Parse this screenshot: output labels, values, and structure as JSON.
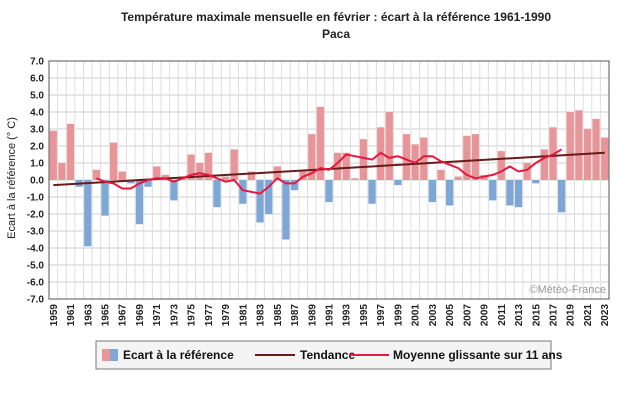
{
  "chart_data": {
    "type": "bar",
    "title": "Température maximale mensuelle en février : écart à la référence 1961-1990",
    "subtitle": "Paca",
    "ylabel": "Ecart à la référence (° C)",
    "xlabel": "",
    "ylim": [
      -7,
      7
    ],
    "yticks": [
      7,
      6,
      5,
      4,
      3,
      2,
      1,
      0,
      -1,
      -2,
      -3,
      -4,
      -5,
      -6,
      -7
    ],
    "ytick_labels": [
      "7.0",
      "6.0",
      "5.0",
      "4.0",
      "3.0",
      "2.0",
      "1.0",
      "0.0",
      "-1.0",
      "-2.0",
      "-3.0",
      "-4.0",
      "-5.0",
      "-6.0",
      "-7.0"
    ],
    "x": [
      1959,
      1960,
      1961,
      1962,
      1963,
      1964,
      1965,
      1966,
      1967,
      1968,
      1969,
      1970,
      1971,
      1972,
      1973,
      1974,
      1975,
      1976,
      1977,
      1978,
      1979,
      1980,
      1981,
      1982,
      1983,
      1984,
      1985,
      1986,
      1987,
      1988,
      1989,
      1990,
      1991,
      1992,
      1993,
      1994,
      1995,
      1996,
      1997,
      1998,
      1999,
      2000,
      2001,
      2002,
      2003,
      2004,
      2005,
      2006,
      2007,
      2008,
      2009,
      2010,
      2011,
      2012,
      2013,
      2014,
      2015,
      2016,
      2017,
      2018,
      2019,
      2020,
      2021,
      2022,
      2023
    ],
    "xtick_labels": [
      "1959",
      "1961",
      "1963",
      "1965",
      "1967",
      "1969",
      "1971",
      "1973",
      "1975",
      "1977",
      "1979",
      "1981",
      "1983",
      "1985",
      "1987",
      "1989",
      "1991",
      "1993",
      "1995",
      "1997",
      "1999",
      "2001",
      "2003",
      "2005",
      "2007",
      "2009",
      "2011",
      "2013",
      "2015",
      "2017",
      "2019",
      "2021",
      "2023"
    ],
    "series": [
      {
        "name": "Ecart à la référence",
        "kind": "bar",
        "positive_color": "#e8959a",
        "negative_color": "#7fa7d6",
        "values": [
          2.9,
          1.0,
          3.3,
          -0.4,
          -3.9,
          0.6,
          -2.1,
          2.2,
          0.5,
          -0.2,
          -2.6,
          -0.4,
          0.8,
          0.3,
          -1.2,
          0.1,
          1.5,
          1.0,
          1.6,
          -1.6,
          0.2,
          1.8,
          -1.4,
          0.5,
          -2.5,
          -2.0,
          0.8,
          -3.5,
          -0.6,
          0.5,
          2.7,
          4.3,
          -1.3,
          1.6,
          1.6,
          0.1,
          2.4,
          -1.4,
          3.1,
          4.0,
          -0.3,
          2.7,
          2.1,
          2.5,
          -1.3,
          0.6,
          -1.5,
          0.2,
          2.6,
          2.7,
          0.3,
          -1.2,
          1.7,
          -1.5,
          -1.6,
          1.0,
          -0.2,
          1.8,
          3.1,
          -1.9,
          4.0,
          4.1,
          3.0,
          3.6,
          2.5
        ]
      },
      {
        "name": "Tendance",
        "kind": "line",
        "color": "#6b1a1a",
        "x": [
          1959,
          2023
        ],
        "values": [
          -0.3,
          1.6
        ]
      },
      {
        "name": "Moyenne glissante sur 11 ans",
        "kind": "line",
        "color": "#e8173d",
        "x": [
          1964,
          1965,
          1966,
          1967,
          1968,
          1969,
          1970,
          1971,
          1972,
          1973,
          1974,
          1975,
          1976,
          1977,
          1978,
          1979,
          1980,
          1981,
          1982,
          1983,
          1984,
          1985,
          1986,
          1987,
          1988,
          1989,
          1990,
          1991,
          1992,
          1993,
          1994,
          1995,
          1996,
          1997,
          1998,
          1999,
          2000,
          2001,
          2002,
          2003,
          2004,
          2005,
          2006,
          2007,
          2008,
          2009,
          2010,
          2011,
          2012,
          2013,
          2014,
          2015,
          2016,
          2017,
          2018
        ],
        "values": [
          0.1,
          -0.1,
          -0.2,
          -0.5,
          -0.5,
          -0.2,
          0.0,
          0.1,
          0.1,
          -0.1,
          0.1,
          0.3,
          0.4,
          0.3,
          0.1,
          -0.1,
          0.0,
          -0.6,
          -0.7,
          -0.8,
          -0.4,
          0.1,
          -0.2,
          -0.2,
          0.2,
          0.4,
          0.7,
          0.6,
          1.0,
          1.5,
          1.4,
          1.3,
          1.2,
          1.6,
          1.3,
          1.4,
          1.2,
          1.0,
          1.4,
          1.4,
          1.1,
          0.9,
          0.7,
          0.3,
          0.1,
          0.2,
          0.3,
          0.5,
          0.8,
          0.5,
          0.6,
          1.0,
          1.3,
          1.5,
          1.8
        ]
      }
    ],
    "legend": {
      "position": "bottom",
      "entries": [
        "Ecart à la référence",
        "Tendance",
        "Moyenne glissante sur 11 ans"
      ]
    },
    "grid": true,
    "watermark": "©Météo-France"
  }
}
